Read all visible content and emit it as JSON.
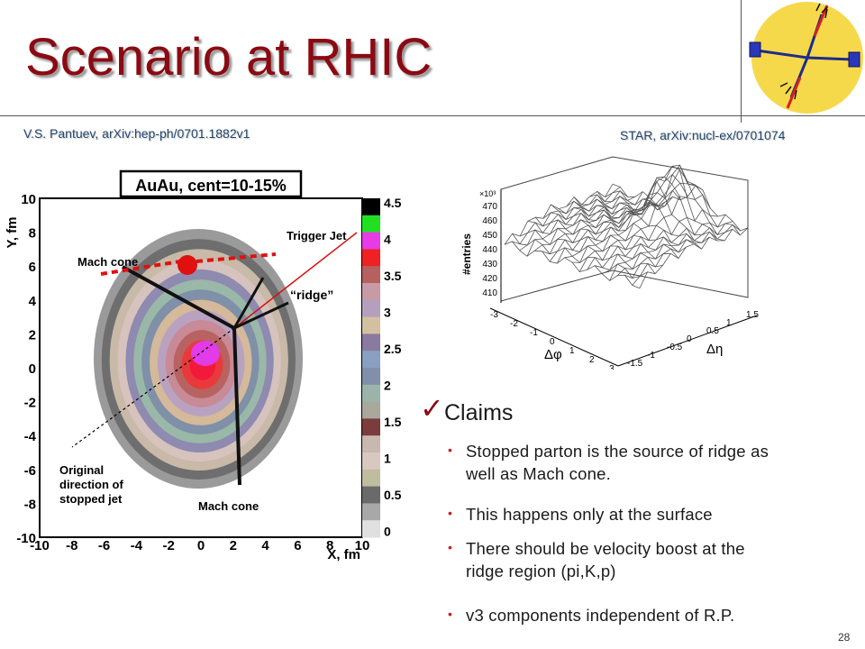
{
  "title": "Scenario at RHIC",
  "refs": {
    "left": "V.S. Pantuev,  arXiv:hep-ph/0701.1882v1",
    "right": "STAR, arXiv:nucl-ex/0701074"
  },
  "left_figure": {
    "header": "AuAu, cent=10-15%",
    "xlabel": "X, fm",
    "ylabel": "Y, fm",
    "xticks": [
      "-10",
      "-8",
      "-6",
      "-4",
      "-2",
      "0",
      "2",
      "4",
      "6",
      "8",
      "10"
    ],
    "yticks": [
      "10",
      "8",
      "6",
      "4",
      "2",
      "0",
      "-2",
      "-4",
      "-6",
      "-8",
      "-10"
    ],
    "colorbar_ticks": [
      "4.5",
      "4",
      "3.5",
      "3",
      "2.5",
      "2",
      "1.5",
      "1",
      "0.5",
      "0"
    ],
    "colorbar_colors": [
      "#000000",
      "#21e021",
      "#e63be6",
      "#ee2222",
      "#b66060",
      "#c89aa6",
      "#b4a0be",
      "#d2c0a0",
      "#8a7aa0",
      "#8aa0c0",
      "#8090a8",
      "#9ab4ac",
      "#a8a89c",
      "#7a3c3c",
      "#c8b8b0",
      "#d8c8c0",
      "#c0bca0",
      "#6a6a6a",
      "#a8a8a8",
      "#e0e0e0"
    ],
    "annotations": {
      "trigger_jet": "Trigger Jet",
      "mach_cone_top": "Mach cone",
      "ridge": "“ridge”",
      "original": [
        "Original",
        "direction of",
        "stopped jet"
      ],
      "mach_cone_bottom": "Mach cone"
    }
  },
  "right_figure": {
    "zlabel": "#entries",
    "zscale": "×10³",
    "zticks": [
      "470",
      "460",
      "450",
      "440",
      "430",
      "420",
      "410"
    ],
    "phi_label": "Δφ",
    "eta_label": "Δη",
    "phi_ticks": [
      "-3",
      "-2",
      "-1",
      "0",
      "1",
      "2",
      "3"
    ],
    "eta_ticks": [
      "-1.5",
      "-1",
      "-0.5",
      "0",
      "0.5",
      "1",
      "1.5"
    ]
  },
  "claims": {
    "title": "Claims",
    "check": "✓",
    "bullet": "•",
    "items": [
      [
        "Stopped parton is the source of ridge as",
        "well as Mach cone."
      ],
      [
        "This happens only at the surface"
      ],
      [
        "There should be velocity boost at the",
        "ridge region (pi,K,p)"
      ],
      [
        "v3 components independent of R.P."
      ]
    ]
  },
  "page_number": "28"
}
